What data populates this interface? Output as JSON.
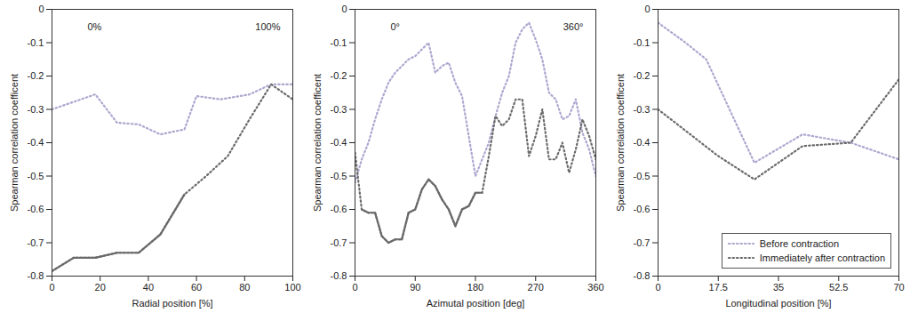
{
  "chart_data": [
    {
      "type": "line",
      "x_label": "Radial position [%]",
      "y_label": "Spearman correlation coefficent",
      "annotations": [
        "0%",
        "100%"
      ],
      "xlim": [
        0,
        100
      ],
      "xticks": [
        0,
        20,
        40,
        60,
        80,
        100
      ],
      "ylim": [
        -0.8,
        0
      ],
      "yticks": [
        -0.8,
        -0.7,
        -0.6,
        -0.5,
        -0.4,
        -0.3,
        -0.2,
        -0.1,
        0
      ],
      "grid": false,
      "series": [
        {
          "name": "Before contraction",
          "color": "#aca7cf",
          "line_style": "dotted",
          "x": [
            0,
            18,
            27,
            36,
            45,
            55,
            60,
            70,
            82,
            91,
            100
          ],
          "values": [
            -0.3,
            -0.255,
            -0.34,
            -0.345,
            -0.375,
            -0.36,
            -0.26,
            -0.27,
            -0.255,
            -0.225,
            -0.225
          ],
          "significant": [
            false,
            false,
            false,
            false,
            false,
            false,
            false,
            false,
            false,
            false,
            false
          ]
        },
        {
          "name": "Immediately after contraction",
          "color": "#6b6b6b",
          "line_style": "dotted",
          "x": [
            0,
            9,
            18,
            27,
            36,
            45,
            55,
            64,
            73,
            82,
            91,
            100
          ],
          "values": [
            -0.785,
            -0.745,
            -0.745,
            -0.73,
            -0.73,
            -0.675,
            -0.555,
            -0.5,
            -0.44,
            -0.33,
            -0.225,
            -0.27
          ],
          "significant": [
            true,
            true,
            true,
            true,
            true,
            true,
            true,
            false,
            false,
            false,
            false,
            false
          ]
        }
      ]
    },
    {
      "type": "line",
      "x_label": "Azimutal position [deg]",
      "y_label": "Spearman correlation coefficent",
      "annotations": [
        "0°",
        "360°"
      ],
      "xlim": [
        0,
        360
      ],
      "xticks": [
        0,
        90,
        180,
        270,
        360
      ],
      "ylim": [
        -0.8,
        0
      ],
      "yticks": [
        -0.8,
        -0.7,
        -0.6,
        -0.5,
        -0.4,
        -0.3,
        -0.2,
        -0.1,
        0
      ],
      "grid": false,
      "series": [
        {
          "name": "Before contraction",
          "color": "#aca7cf",
          "line_style": "dotted",
          "x": [
            0,
            10,
            20,
            30,
            40,
            50,
            60,
            70,
            80,
            90,
            100,
            110,
            120,
            130,
            140,
            150,
            160,
            170,
            180,
            190,
            200,
            210,
            220,
            230,
            240,
            250,
            260,
            270,
            280,
            290,
            300,
            310,
            320,
            330,
            340,
            350,
            360
          ],
          "values": [
            -0.52,
            -0.45,
            -0.4,
            -0.33,
            -0.27,
            -0.22,
            -0.19,
            -0.17,
            -0.15,
            -0.14,
            -0.12,
            -0.1,
            -0.19,
            -0.17,
            -0.16,
            -0.22,
            -0.26,
            -0.38,
            -0.5,
            -0.45,
            -0.4,
            -0.32,
            -0.25,
            -0.2,
            -0.1,
            -0.06,
            -0.04,
            -0.09,
            -0.15,
            -0.25,
            -0.27,
            -0.33,
            -0.32,
            -0.27,
            -0.37,
            -0.42,
            -0.5
          ],
          "significant": [
            false,
            false,
            false,
            false,
            false,
            false,
            false,
            false,
            false,
            false,
            false,
            false,
            false,
            false,
            false,
            false,
            false,
            false,
            false,
            false,
            false,
            false,
            false,
            false,
            false,
            false,
            false,
            false,
            false,
            false,
            false,
            false,
            false,
            false,
            false,
            false,
            false
          ]
        },
        {
          "name": "Immediately after contraction",
          "color": "#6b6b6b",
          "line_style": "dotted",
          "x": [
            0,
            10,
            20,
            30,
            40,
            50,
            60,
            70,
            80,
            90,
            100,
            110,
            120,
            130,
            140,
            150,
            160,
            170,
            180,
            190,
            200,
            210,
            220,
            230,
            240,
            250,
            260,
            270,
            280,
            290,
            300,
            310,
            320,
            330,
            340,
            350,
            360
          ],
          "values": [
            -0.43,
            -0.6,
            -0.61,
            -0.61,
            -0.68,
            -0.7,
            -0.69,
            -0.69,
            -0.61,
            -0.6,
            -0.54,
            -0.51,
            -0.53,
            -0.57,
            -0.6,
            -0.65,
            -0.6,
            -0.59,
            -0.55,
            -0.55,
            -0.44,
            -0.32,
            -0.35,
            -0.33,
            -0.27,
            -0.27,
            -0.44,
            -0.38,
            -0.3,
            -0.45,
            -0.45,
            -0.4,
            -0.49,
            -0.42,
            -0.33,
            -0.38,
            -0.45
          ],
          "significant": [
            false,
            true,
            true,
            true,
            true,
            true,
            true,
            true,
            true,
            true,
            true,
            true,
            true,
            true,
            true,
            true,
            true,
            true,
            true,
            true,
            false,
            false,
            false,
            false,
            false,
            false,
            false,
            false,
            false,
            false,
            false,
            false,
            false,
            false,
            false,
            false,
            false
          ]
        }
      ]
    },
    {
      "type": "line",
      "x_label": "Longitudinal position [%]",
      "y_label": "Spearman correlation coefficent",
      "xlim": [
        0,
        70
      ],
      "xticks": [
        0,
        17.5,
        35,
        52.5,
        70
      ],
      "ylim": [
        -0.8,
        0
      ],
      "yticks": [
        -0.8,
        -0.7,
        -0.6,
        -0.5,
        -0.4,
        -0.3,
        -0.2,
        -0.1,
        0
      ],
      "grid": false,
      "legend": "lower right",
      "series": [
        {
          "name": "Before contraction",
          "color": "#aca7cf",
          "line_style": "dotted",
          "x": [
            0,
            8,
            14,
            28,
            42,
            56,
            70
          ],
          "values": [
            -0.04,
            -0.1,
            -0.15,
            -0.46,
            -0.375,
            -0.4,
            -0.45
          ],
          "significant": [
            false,
            false,
            false,
            false,
            false,
            false,
            false
          ]
        },
        {
          "name": "Immediately after contraction",
          "color": "#6b6b6b",
          "line_style": "dotted",
          "x": [
            0,
            17.5,
            28,
            42,
            56,
            70
          ],
          "values": [
            -0.3,
            -0.44,
            -0.51,
            -0.41,
            -0.4,
            -0.21
          ],
          "significant": [
            false,
            false,
            false,
            false,
            false,
            false
          ]
        }
      ]
    }
  ]
}
